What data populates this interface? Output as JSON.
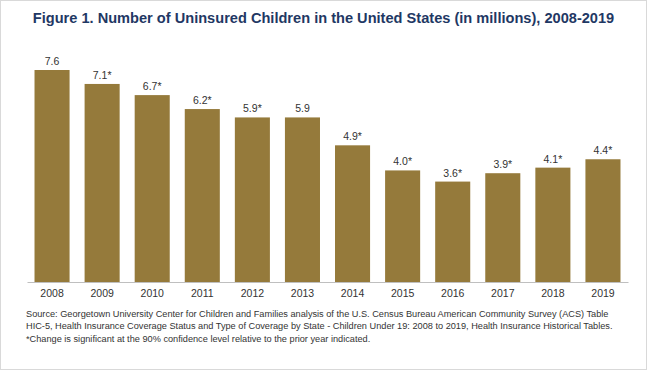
{
  "chart_data": {
    "type": "bar",
    "title": "Figure 1. Number of Uninsured Children in the United States (in millions), 2008-2019",
    "categories": [
      "2008",
      "2009",
      "2010",
      "2011",
      "2012",
      "2013",
      "2014",
      "2015",
      "2016",
      "2017",
      "2018",
      "2019"
    ],
    "values": [
      7.6,
      7.1,
      6.7,
      6.2,
      5.9,
      5.9,
      4.9,
      4.0,
      3.6,
      3.9,
      4.1,
      4.4
    ],
    "value_labels": [
      "7.6",
      "7.1*",
      "6.7*",
      "6.2*",
      "5.9*",
      "5.9",
      "4.9*",
      "4.0*",
      "3.6*",
      "3.9*",
      "4.1*",
      "4.4*"
    ],
    "color": "#957a3b",
    "data_labels": true,
    "tick_labels": "x",
    "annotations": [
      "Source: Georgetown University Center for Children and Families analysis of the U.S. Census Bureau American Community Survey (ACS) Table HIC-5, Health Insurance Coverage Status and Type of Coverage by State - Children Under 19: 2008 to 2019, Health Insurance Historical Tables.",
      "*Change is significant at the 90% confidence level relative to the prior year indicated."
    ]
  }
}
